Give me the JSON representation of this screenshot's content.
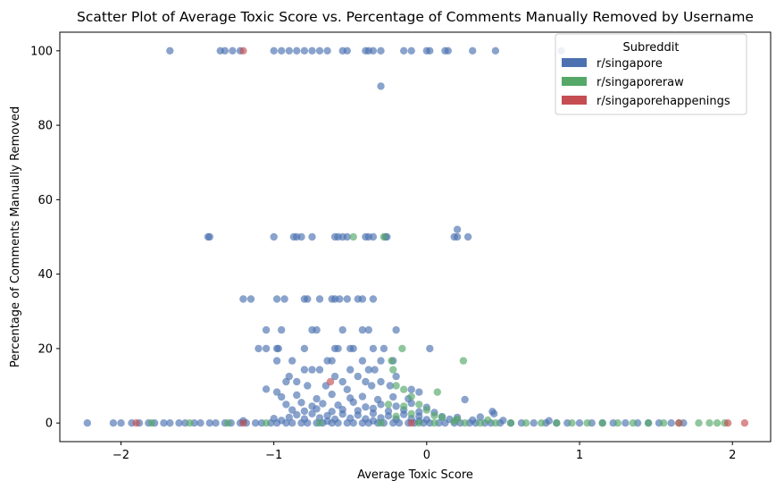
{
  "chart_data": {
    "type": "scatter",
    "title": "Scatter Plot of Average Toxic Score vs. Percentage of Comments Manually Removed by Username",
    "xlabel": "Average Toxic Score",
    "ylabel": "Percentage of Comments Manually Removed",
    "xlim": [
      -2.4,
      2.25
    ],
    "ylim": [
      -5,
      105
    ],
    "xticks": [
      -2,
      -1,
      0,
      1,
      2
    ],
    "yticks": [
      0,
      20,
      40,
      60,
      80,
      100
    ],
    "grid": false,
    "legend": {
      "title": "Subreddit",
      "position": "top-right"
    },
    "series": [
      {
        "name": "r/singapore",
        "color": "#4c72b0",
        "points": [
          [
            -2.22,
            0
          ],
          [
            -2.05,
            0
          ],
          [
            -2.0,
            0
          ],
          [
            -1.93,
            0
          ],
          [
            -1.88,
            0
          ],
          [
            -1.82,
            0
          ],
          [
            -1.78,
            0
          ],
          [
            -1.72,
            0
          ],
          [
            -1.68,
            0
          ],
          [
            -1.62,
            0
          ],
          [
            -1.58,
            0
          ],
          [
            -1.52,
            0
          ],
          [
            -1.48,
            0
          ],
          [
            -1.42,
            0
          ],
          [
            -1.38,
            0
          ],
          [
            -1.32,
            0
          ],
          [
            -1.28,
            0
          ],
          [
            -1.22,
            0
          ],
          [
            -1.18,
            0
          ],
          [
            -1.12,
            0
          ],
          [
            -1.08,
            0
          ],
          [
            -1.02,
            0
          ],
          [
            -0.98,
            0
          ],
          [
            -0.92,
            0
          ],
          [
            -0.88,
            0
          ],
          [
            -0.82,
            0
          ],
          [
            -0.78,
            0
          ],
          [
            -0.72,
            0
          ],
          [
            -0.68,
            0
          ],
          [
            -0.62,
            0
          ],
          [
            -0.58,
            0
          ],
          [
            -0.52,
            0
          ],
          [
            -0.48,
            0
          ],
          [
            -0.42,
            0
          ],
          [
            -0.38,
            0
          ],
          [
            -0.32,
            0
          ],
          [
            -0.28,
            0
          ],
          [
            -0.22,
            0
          ],
          [
            -0.18,
            0
          ],
          [
            -0.12,
            0
          ],
          [
            -0.08,
            0
          ],
          [
            -0.02,
            0
          ],
          [
            0.02,
            0
          ],
          [
            0.08,
            0
          ],
          [
            0.12,
            0
          ],
          [
            0.18,
            0
          ],
          [
            0.22,
            0
          ],
          [
            0.28,
            0
          ],
          [
            0.32,
            0
          ],
          [
            0.38,
            0
          ],
          [
            0.42,
            0
          ],
          [
            0.48,
            0
          ],
          [
            0.55,
            0
          ],
          [
            0.62,
            0
          ],
          [
            0.7,
            0
          ],
          [
            0.78,
            0
          ],
          [
            0.85,
            0
          ],
          [
            0.92,
            0
          ],
          [
            1.0,
            0
          ],
          [
            1.08,
            0
          ],
          [
            1.15,
            0
          ],
          [
            1.22,
            0
          ],
          [
            1.3,
            0
          ],
          [
            1.38,
            0
          ],
          [
            1.45,
            0
          ],
          [
            1.52,
            0
          ],
          [
            1.6,
            0
          ],
          [
            1.68,
            0
          ],
          [
            -1.68,
            100
          ],
          [
            -1.35,
            100
          ],
          [
            -1.32,
            100
          ],
          [
            -1.27,
            100
          ],
          [
            -1.22,
            100
          ],
          [
            -1.0,
            100
          ],
          [
            -0.95,
            100
          ],
          [
            -0.9,
            100
          ],
          [
            -0.85,
            100
          ],
          [
            -0.8,
            100
          ],
          [
            -0.75,
            100
          ],
          [
            -0.7,
            100
          ],
          [
            -0.65,
            100
          ],
          [
            -0.55,
            100
          ],
          [
            -0.52,
            100
          ],
          [
            -0.4,
            100
          ],
          [
            -0.38,
            100
          ],
          [
            -0.35,
            100
          ],
          [
            -0.3,
            100
          ],
          [
            -0.15,
            100
          ],
          [
            -0.1,
            100
          ],
          [
            0.0,
            100
          ],
          [
            0.02,
            100
          ],
          [
            0.12,
            100
          ],
          [
            0.14,
            100
          ],
          [
            0.3,
            100
          ],
          [
            0.45,
            100
          ],
          [
            0.88,
            100
          ],
          [
            -0.3,
            90.5
          ],
          [
            -1.43,
            50
          ],
          [
            -1.42,
            50
          ],
          [
            -1.0,
            50
          ],
          [
            -0.87,
            50
          ],
          [
            -0.85,
            50
          ],
          [
            -0.82,
            50
          ],
          [
            -0.75,
            50
          ],
          [
            -0.6,
            50
          ],
          [
            -0.58,
            50
          ],
          [
            -0.55,
            50
          ],
          [
            -0.52,
            50
          ],
          [
            -0.4,
            50
          ],
          [
            -0.38,
            50
          ],
          [
            -0.35,
            50
          ],
          [
            -0.27,
            50
          ],
          [
            -0.26,
            50
          ],
          [
            0.18,
            50
          ],
          [
            0.2,
            50
          ],
          [
            0.27,
            50
          ],
          [
            0.2,
            52
          ],
          [
            -1.2,
            33.3
          ],
          [
            -1.15,
            33.3
          ],
          [
            -0.98,
            33.3
          ],
          [
            -0.93,
            33.3
          ],
          [
            -0.8,
            33.3
          ],
          [
            -0.78,
            33.3
          ],
          [
            -0.7,
            33.3
          ],
          [
            -0.62,
            33.3
          ],
          [
            -0.6,
            33.3
          ],
          [
            -0.57,
            33.3
          ],
          [
            -0.52,
            33.3
          ],
          [
            -0.45,
            33.3
          ],
          [
            -0.42,
            33.3
          ],
          [
            -0.35,
            33.3
          ],
          [
            -1.05,
            25
          ],
          [
            -0.95,
            25
          ],
          [
            -0.75,
            25
          ],
          [
            -0.72,
            25
          ],
          [
            -0.55,
            25
          ],
          [
            -0.42,
            25
          ],
          [
            -0.38,
            25
          ],
          [
            -0.2,
            25
          ],
          [
            -1.1,
            20
          ],
          [
            -1.05,
            20
          ],
          [
            -0.98,
            20
          ],
          [
            -0.97,
            20
          ],
          [
            -0.8,
            20
          ],
          [
            -0.6,
            20
          ],
          [
            -0.58,
            20
          ],
          [
            -0.5,
            20
          ],
          [
            -0.48,
            20
          ],
          [
            -0.35,
            20
          ],
          [
            -0.28,
            20
          ],
          [
            0.02,
            20
          ],
          [
            -0.98,
            16.7
          ],
          [
            -0.88,
            16.7
          ],
          [
            -0.65,
            16.7
          ],
          [
            -0.62,
            16.7
          ],
          [
            -0.42,
            16.7
          ],
          [
            -0.3,
            16.7
          ],
          [
            -0.22,
            16.7
          ],
          [
            -0.8,
            14.3
          ],
          [
            -0.75,
            14.3
          ],
          [
            -0.7,
            14.3
          ],
          [
            -0.5,
            14.3
          ],
          [
            -0.38,
            14.3
          ],
          [
            -0.34,
            14.3
          ],
          [
            -0.9,
            12.5
          ],
          [
            -0.6,
            12.5
          ],
          [
            -0.45,
            12.5
          ],
          [
            -0.2,
            12.5
          ],
          [
            -0.92,
            11.1
          ],
          [
            -0.85,
            11.1
          ],
          [
            -0.55,
            11.1
          ],
          [
            -0.4,
            11.1
          ],
          [
            -0.3,
            11.1
          ],
          [
            -1.05,
            9.1
          ],
          [
            -0.98,
            8.3
          ],
          [
            -0.78,
            10
          ],
          [
            -0.66,
            10
          ],
          [
            -0.52,
            9
          ],
          [
            -0.36,
            10
          ],
          [
            -0.24,
            10
          ],
          [
            -0.1,
            9
          ],
          [
            -0.05,
            8.3
          ],
          [
            -0.95,
            7
          ],
          [
            -0.85,
            7.5
          ],
          [
            -0.72,
            6.5
          ],
          [
            -0.62,
            7.7
          ],
          [
            -0.5,
            6.7
          ],
          [
            -0.42,
            7.1
          ],
          [
            -0.32,
            6.3
          ],
          [
            -0.22,
            7
          ],
          [
            -0.12,
            6.5
          ],
          [
            0.25,
            6.3
          ],
          [
            -0.92,
            5
          ],
          [
            -0.82,
            5.5
          ],
          [
            -0.75,
            4.5
          ],
          [
            -0.68,
            5.2
          ],
          [
            -0.58,
            4.8
          ],
          [
            -0.48,
            5.6
          ],
          [
            -0.4,
            4.3
          ],
          [
            -0.3,
            5
          ],
          [
            -0.2,
            4.5
          ],
          [
            -0.1,
            5.3
          ],
          [
            0.0,
            4.2
          ],
          [
            -0.88,
            3.5
          ],
          [
            -0.8,
            3.2
          ],
          [
            -0.72,
            3.8
          ],
          [
            -0.62,
            3.1
          ],
          [
            -0.55,
            3.6
          ],
          [
            -0.45,
            3.3
          ],
          [
            -0.35,
            3.9
          ],
          [
            -0.25,
            3.2
          ],
          [
            -0.15,
            3.5
          ],
          [
            -0.05,
            3.0
          ],
          [
            0.05,
            2.8
          ],
          [
            0.43,
            3.1
          ],
          [
            0.44,
            2.5
          ],
          [
            -0.85,
            2.2
          ],
          [
            -0.75,
            2.5
          ],
          [
            -0.65,
            2.0
          ],
          [
            -0.55,
            2.4
          ],
          [
            -0.45,
            2.1
          ],
          [
            -0.35,
            2.6
          ],
          [
            -0.25,
            1.9
          ],
          [
            -0.15,
            2.3
          ],
          [
            -0.05,
            1.8
          ],
          [
            0.1,
            1.7
          ],
          [
            0.2,
            1.5
          ],
          [
            0.35,
            1.6
          ],
          [
            -1.0,
            1.2
          ],
          [
            -0.9,
            1.5
          ],
          [
            -0.8,
            1.1
          ],
          [
            -0.7,
            1.4
          ],
          [
            -0.6,
            1.0
          ],
          [
            -0.5,
            1.3
          ],
          [
            -0.4,
            1.1
          ],
          [
            -0.3,
            1.4
          ],
          [
            -0.2,
            1.0
          ],
          [
            -0.1,
            1.2
          ],
          [
            0.0,
            0.9
          ],
          [
            0.15,
            1.0
          ],
          [
            0.3,
            0.8
          ],
          [
            0.5,
            0.7
          ],
          [
            0.8,
            0.6
          ],
          [
            -1.2,
            0.6
          ],
          [
            -0.95,
            0.7
          ],
          [
            -0.65,
            0.5
          ],
          [
            -0.35,
            0.6
          ],
          [
            -0.05,
            0.5
          ]
        ]
      },
      {
        "name": "r/singaporeraw",
        "color": "#55a868",
        "points": [
          [
            -1.8,
            0
          ],
          [
            -1.55,
            0
          ],
          [
            -1.3,
            0
          ],
          [
            -1.05,
            0
          ],
          [
            -0.7,
            0
          ],
          [
            -0.3,
            0
          ],
          [
            -0.05,
            0
          ],
          [
            0.05,
            0
          ],
          [
            0.25,
            0
          ],
          [
            0.35,
            0
          ],
          [
            0.45,
            0
          ],
          [
            0.55,
            0
          ],
          [
            0.65,
            0
          ],
          [
            0.75,
            0
          ],
          [
            0.85,
            0
          ],
          [
            0.95,
            0
          ],
          [
            1.05,
            0
          ],
          [
            1.15,
            0
          ],
          [
            1.25,
            0
          ],
          [
            1.35,
            0
          ],
          [
            1.45,
            0
          ],
          [
            1.55,
            0
          ],
          [
            1.65,
            0
          ],
          [
            1.78,
            0
          ],
          [
            1.85,
            0
          ],
          [
            1.9,
            0
          ],
          [
            1.95,
            0
          ],
          [
            -0.48,
            50
          ],
          [
            -0.28,
            50
          ],
          [
            -0.16,
            20
          ],
          [
            -0.23,
            16.7
          ],
          [
            -0.22,
            14.3
          ],
          [
            0.24,
            16.7
          ],
          [
            -0.2,
            10
          ],
          [
            0.07,
            8.3
          ],
          [
            -0.15,
            9
          ],
          [
            -0.1,
            7.1
          ],
          [
            -0.25,
            5
          ],
          [
            -0.15,
            4.5
          ],
          [
            -0.05,
            5
          ],
          [
            0.0,
            3.5
          ],
          [
            -0.1,
            2.5
          ],
          [
            0.05,
            2.0
          ],
          [
            0.1,
            1.5
          ],
          [
            -0.2,
            1.8
          ],
          [
            0.2,
            1.0
          ],
          [
            0.18,
            0.5
          ],
          [
            0.4,
            0.8
          ]
        ]
      },
      {
        "name": "r/singaporehappenings",
        "color": "#c44e52",
        "points": [
          [
            -1.2,
            100
          ],
          [
            -0.63,
            11.1
          ],
          [
            -1.9,
            0
          ],
          [
            -1.2,
            0
          ],
          [
            -0.1,
            0
          ],
          [
            1.65,
            0
          ],
          [
            1.97,
            0
          ],
          [
            2.08,
            0
          ]
        ]
      }
    ]
  }
}
